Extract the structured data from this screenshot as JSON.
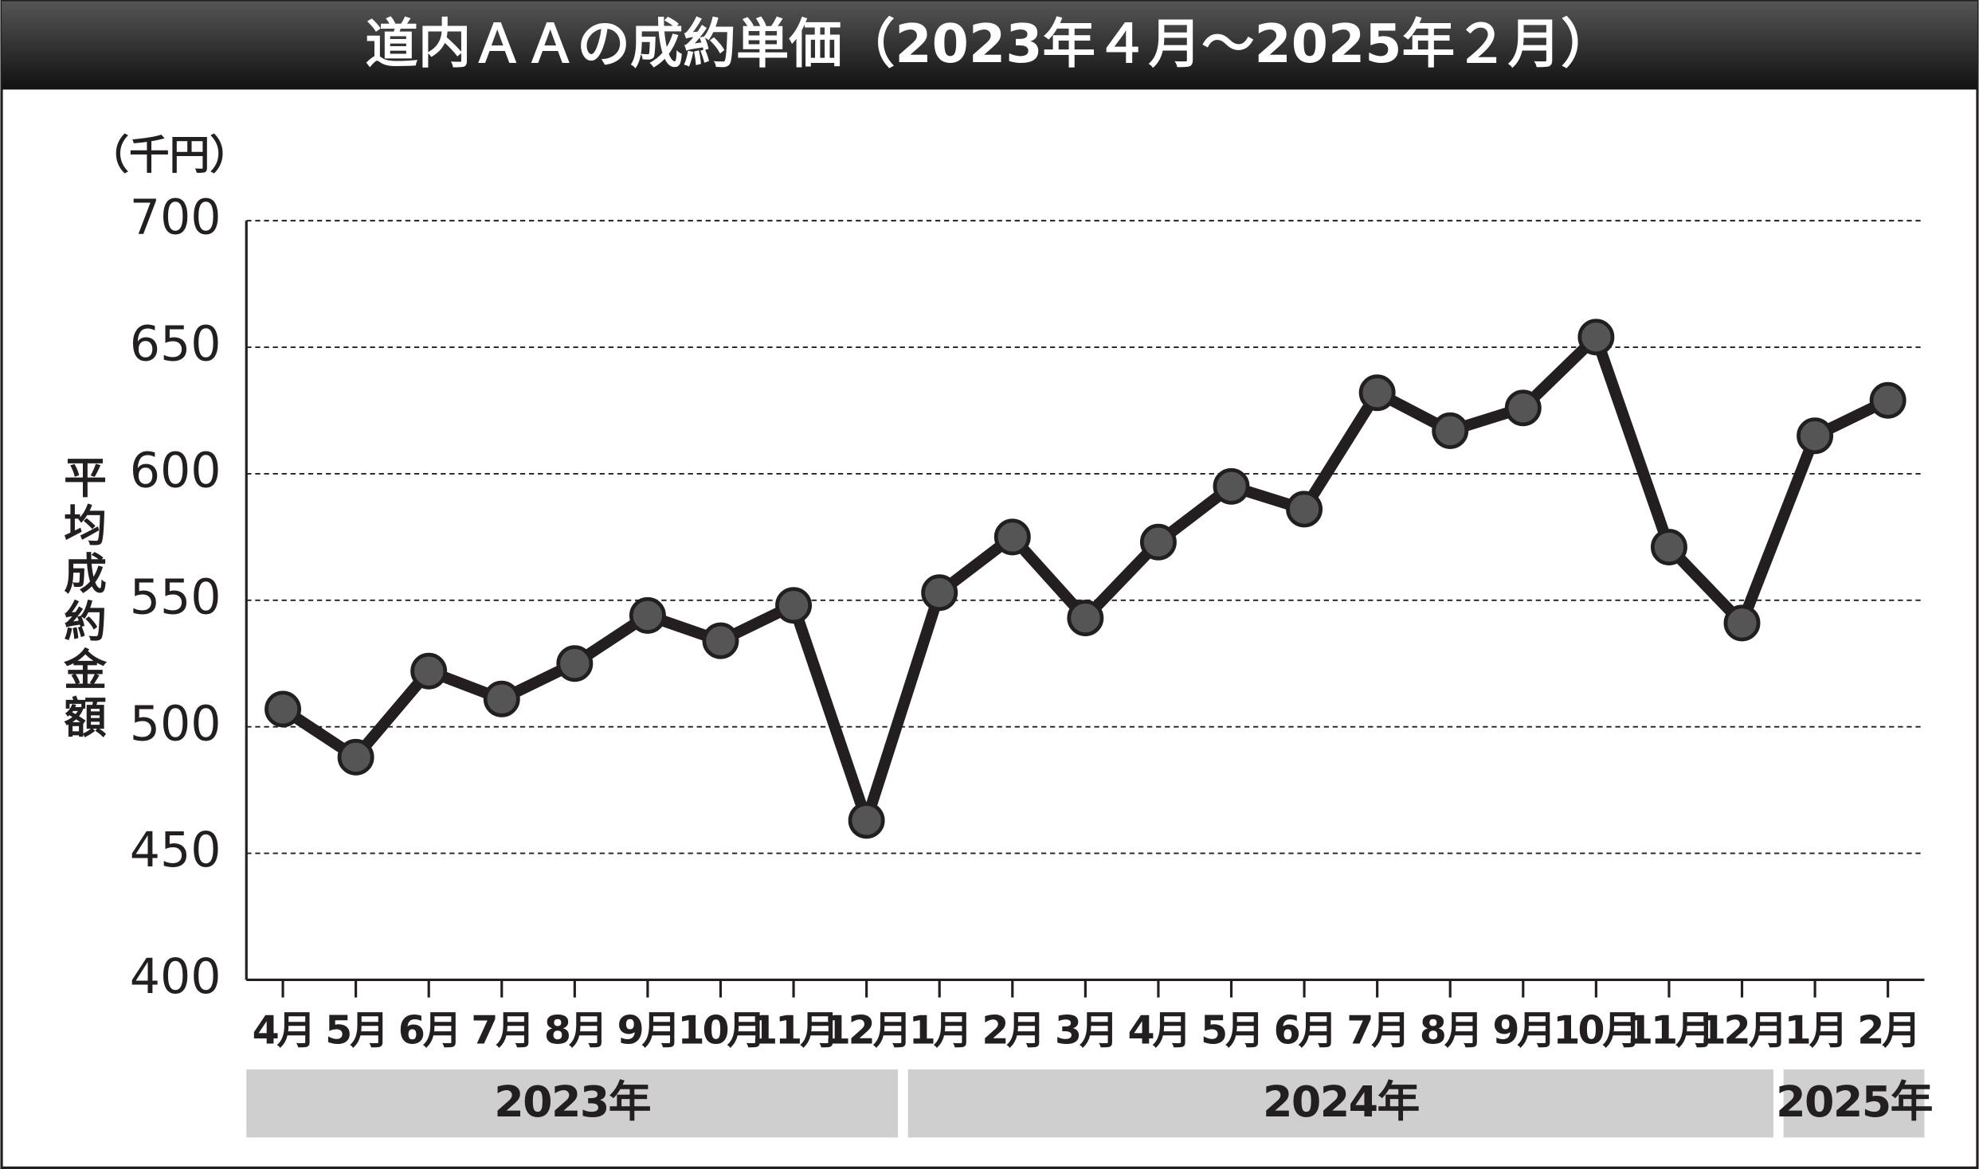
{
  "chart_data": {
    "type": "line",
    "title": "道内ＡＡの成約単価（2023年４月～2025年２月）",
    "unit_label": "（千円）",
    "y_label": "平均成約金額",
    "groups": [
      {
        "label": "2023年",
        "categories": [
          "4月",
          "5月",
          "6月",
          "7月",
          "8月",
          "9月",
          "10月",
          "11月",
          "12月"
        ]
      },
      {
        "label": "2024年",
        "categories": [
          "1月",
          "2月",
          "3月",
          "4月",
          "5月",
          "6月",
          "7月",
          "8月",
          "9月",
          "10月",
          "11月",
          "12月"
        ]
      },
      {
        "label": "2025年",
        "categories": [
          "1月",
          "2月"
        ]
      }
    ],
    "values": [
      507,
      488,
      522,
      511,
      525,
      544,
      534,
      548,
      463,
      553,
      575,
      543,
      573,
      595,
      586,
      632,
      617,
      626,
      654,
      571,
      541,
      615,
      629
    ],
    "color": "#231f20",
    "marker_color": "#555555",
    "ylim": [
      400,
      700
    ],
    "yticks": [
      400,
      450,
      500,
      550,
      600,
      650,
      700
    ],
    "grid": true
  }
}
